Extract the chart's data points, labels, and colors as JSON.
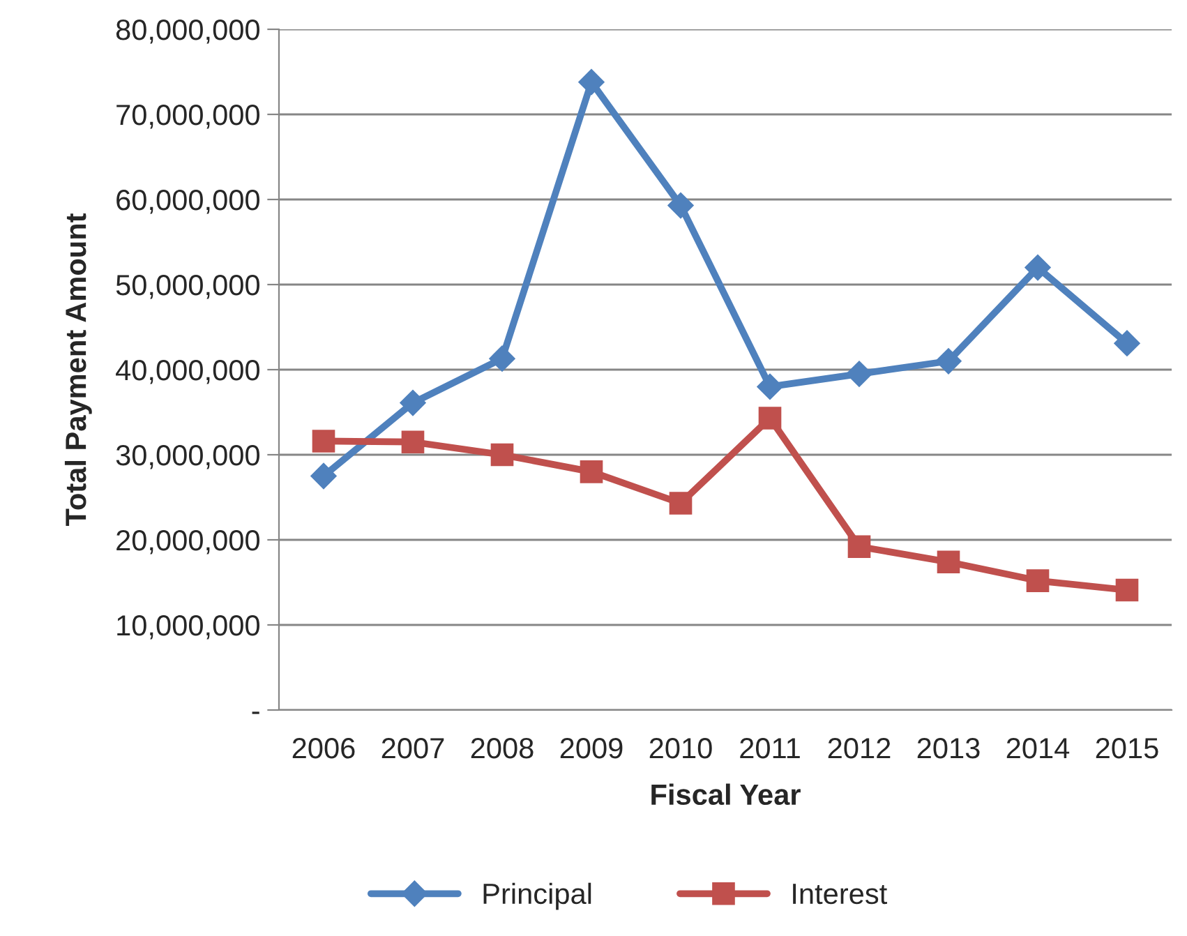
{
  "chart_data": {
    "type": "line",
    "xlabel": "Fiscal Year",
    "ylabel": "Total Payment Amount",
    "categories": [
      "2006",
      "2007",
      "2008",
      "2009",
      "2010",
      "2011",
      "2012",
      "2013",
      "2014",
      "2015"
    ],
    "series": [
      {
        "name": "Principal",
        "color": "#4f81bd",
        "marker": "diamond",
        "values": [
          27500000,
          36100000,
          41300000,
          73800000,
          59300000,
          38000000,
          39500000,
          41000000,
          52000000,
          43100000
        ]
      },
      {
        "name": "Interest",
        "color": "#c0504d",
        "marker": "square",
        "values": [
          31600000,
          31500000,
          30000000,
          28000000,
          24300000,
          34300000,
          19200000,
          17400000,
          15200000,
          14100000
        ]
      }
    ],
    "ylim": [
      0,
      80000000
    ],
    "yticks": [
      {
        "value": 0,
        "label": "-"
      },
      {
        "value": 10000000,
        "label": "10,000,000"
      },
      {
        "value": 20000000,
        "label": "20,000,000"
      },
      {
        "value": 30000000,
        "label": "30,000,000"
      },
      {
        "value": 40000000,
        "label": "40,000,000"
      },
      {
        "value": 50000000,
        "label": "50,000,000"
      },
      {
        "value": 60000000,
        "label": "60,000,000"
      },
      {
        "value": 70000000,
        "label": "70,000,000"
      },
      {
        "value": 80000000,
        "label": "80,000,000"
      }
    ],
    "grid": "y",
    "legend": "bottom",
    "line_style": "solid"
  }
}
